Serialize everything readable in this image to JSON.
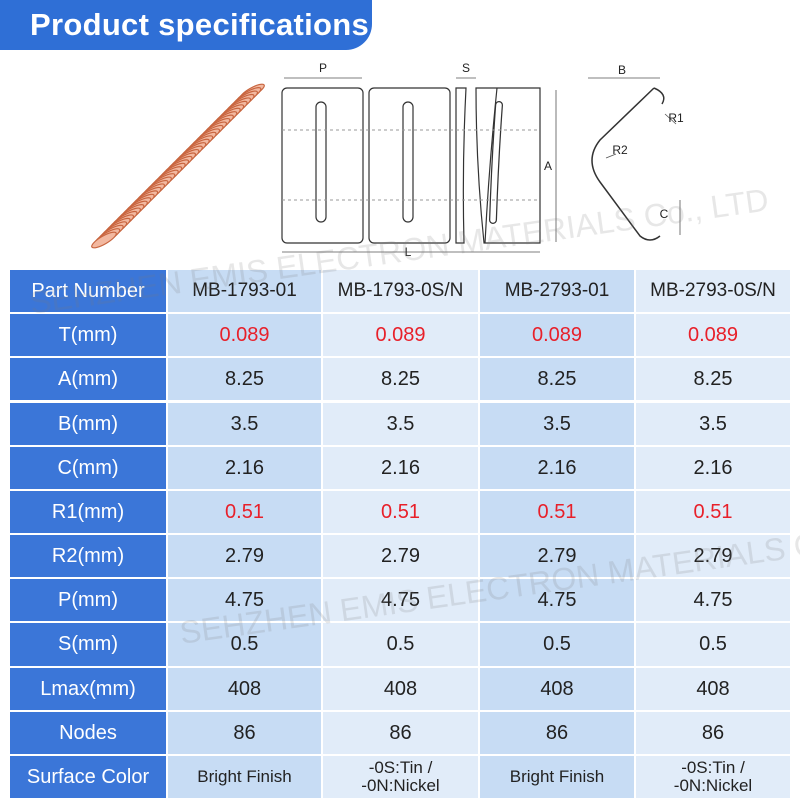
{
  "header": {
    "title": "Product specifications"
  },
  "diagram": {
    "labels": [
      "P",
      "S",
      "A",
      "L",
      "B",
      "R1",
      "R2",
      "C"
    ]
  },
  "watermarks": [
    "SEHZHEN EMIS ELECTRON MATERIALS Co., LTD",
    "SEHZHEN EMIS ELECTRON MATERIALS Co., LTD"
  ],
  "table": {
    "header": [
      "Part Number",
      "MB-1793-01",
      "MB-1793-0S/N",
      "MB-2793-01",
      "MB-2793-0S/N"
    ],
    "rows": [
      {
        "label": "T(mm)",
        "cells": [
          "0.089",
          "0.089",
          "0.089",
          "0.089"
        ],
        "color": "#e8202a"
      },
      {
        "label": "A(mm)",
        "cells": [
          "8.25",
          "8.25",
          "8.25",
          "8.25"
        ]
      },
      {
        "label": "B(mm)",
        "cells": [
          "3.5",
          "3.5",
          "3.5",
          "3.5"
        ]
      },
      {
        "label": "C(mm)",
        "cells": [
          "2.16",
          "2.16",
          "2.16",
          "2.16"
        ]
      },
      {
        "label": "R1(mm)",
        "cells": [
          "0.51",
          "0.51",
          "0.51",
          "0.51"
        ],
        "color": "#e8202a"
      },
      {
        "label": "R2(mm)",
        "cells": [
          "2.79",
          "2.79",
          "2.79",
          "2.79"
        ]
      },
      {
        "label": "P(mm)",
        "cells": [
          "4.75",
          "4.75",
          "4.75",
          "4.75"
        ]
      },
      {
        "label": "S(mm)",
        "cells": [
          "0.5",
          "0.5",
          "0.5",
          "0.5"
        ]
      },
      {
        "label": "Lmax(mm)",
        "cells": [
          "408",
          "408",
          "408",
          "408"
        ]
      },
      {
        "label": "Nodes",
        "cells": [
          "86",
          "86",
          "86",
          "86"
        ]
      },
      {
        "label": "Surface Color",
        "cells": [
          "Bright Finish",
          "-0S:Tin /\n-0N:Nickel",
          "Bright Finish",
          "-0S:Tin /\n-0N:Nickel"
        ]
      }
    ]
  }
}
